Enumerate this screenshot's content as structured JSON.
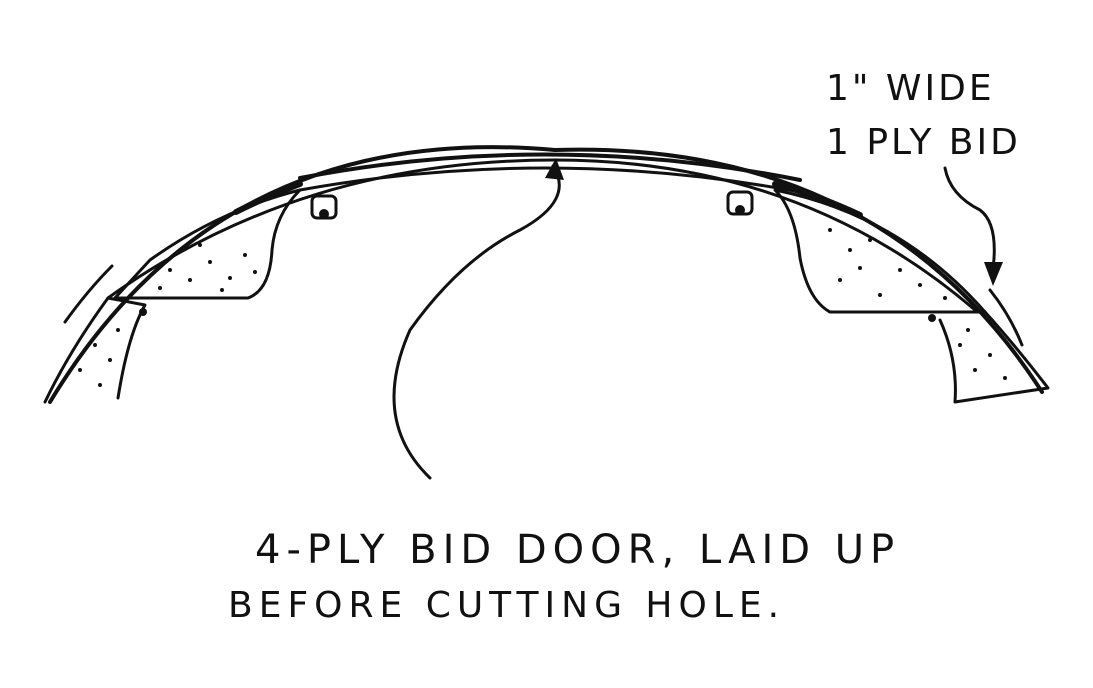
{
  "callouts": {
    "strip": {
      "line1": "1\" WIDE",
      "line2": "1 PLY BID"
    },
    "door": {
      "line1": "4-PLY BID DOOR, LAID UP",
      "line2": "BEFORE CUTTING HOLE."
    }
  }
}
